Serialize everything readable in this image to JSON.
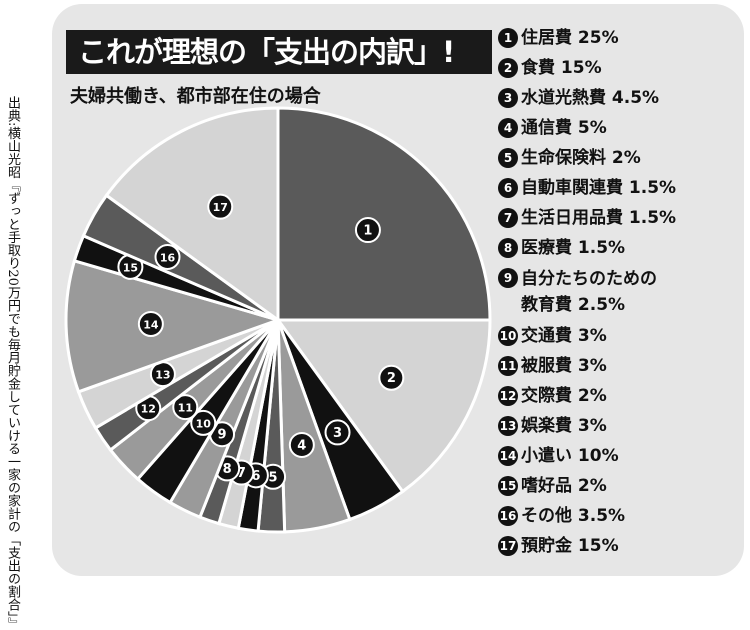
{
  "title": "これが理想の「支出の内訳」!",
  "subtitle": "夫婦共働き、都市部在住の場合",
  "source": "出典:横山光昭『ずっと手取り20万円でも毎月貯金していける一家の家計の「支出の割合」』",
  "legend": [
    {
      "num": "1",
      "label": "住居費 25%"
    },
    {
      "num": "2",
      "label": "食費 15%"
    },
    {
      "num": "3",
      "label": "水道光熱費 4.5%"
    },
    {
      "num": "4",
      "label": "通信費 5%"
    },
    {
      "num": "5",
      "label": "生命保険料 2%"
    },
    {
      "num": "6",
      "label": "自動車関連費 1.5%"
    },
    {
      "num": "7",
      "label": "生活日用品費 1.5%"
    },
    {
      "num": "8",
      "label": "医療費 1.5%"
    },
    {
      "num": "9",
      "label": "自分たちのための\n教育費 2.5%"
    },
    {
      "num": "10",
      "label": "交通費 3%"
    },
    {
      "num": "11",
      "label": "被服費 3%"
    },
    {
      "num": "12",
      "label": "交際費 2%"
    },
    {
      "num": "13",
      "label": "娯楽費 3%"
    },
    {
      "num": "14",
      "label": "小遣い 10%"
    },
    {
      "num": "15",
      "label": "嗜好品 2%"
    },
    {
      "num": "16",
      "label": "その他 3.5%"
    },
    {
      "num": "17",
      "label": "預貯金 15%"
    }
  ],
  "colors": {
    "black": "#111111",
    "dark": "#5a5a5a",
    "mid": "#9a9a9a",
    "light": "#d4d4d4",
    "frame": "#e6e6e6"
  },
  "chart_data": {
    "type": "pie",
    "title": "これが理想の「支出の内訳」!",
    "categories": [
      "住居費",
      "食費",
      "水道光熱費",
      "通信費",
      "生命保険料",
      "自動車関連費",
      "生活日用品費",
      "医療費",
      "自分たちのための教育費",
      "交通費",
      "被服費",
      "交際費",
      "娯楽費",
      "小遣い",
      "嗜好品",
      "その他",
      "預貯金"
    ],
    "values": [
      25,
      15,
      4.5,
      5,
      2,
      1.5,
      1.5,
      1.5,
      2.5,
      3,
      3,
      2,
      3,
      10,
      2,
      3.5,
      15
    ],
    "slice_labels": [
      "1",
      "2",
      "3",
      "4",
      "5",
      "6",
      "7",
      "8",
      "9",
      "10",
      "11",
      "12",
      "13",
      "14",
      "15",
      "16",
      "17"
    ],
    "slice_colors": [
      "#5a5a5a",
      "#d4d4d4",
      "#111111",
      "#9a9a9a",
      "#5a5a5a",
      "#111111",
      "#d4d4d4",
      "#5a5a5a",
      "#9a9a9a",
      "#111111",
      "#9a9a9a",
      "#5a5a5a",
      "#d4d4d4",
      "#9a9a9a",
      "#111111",
      "#5a5a5a",
      "#d4d4d4"
    ],
    "start_angle_deg": 0,
    "direction": "clockwise"
  }
}
